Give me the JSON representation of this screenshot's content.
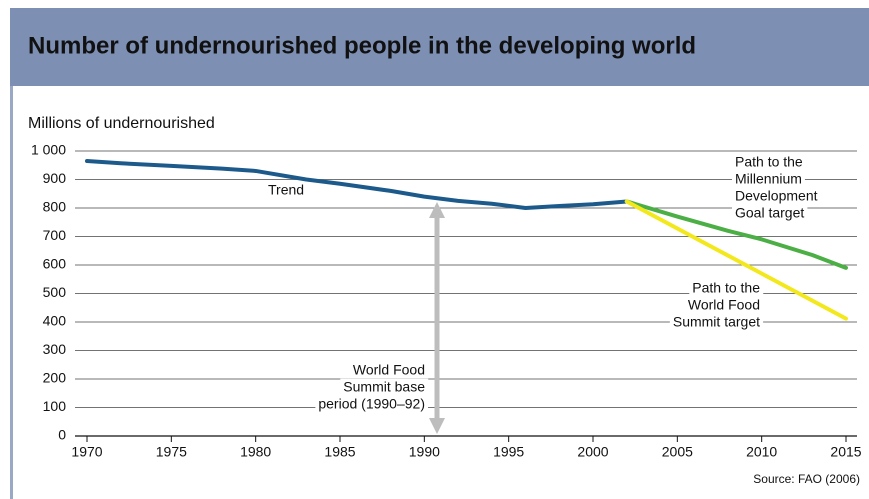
{
  "chart_data": {
    "type": "line",
    "title": "Number of undernourished people in the developing world",
    "ylabel": "Millions of undernourished",
    "source": "Source: FAO (2006)",
    "xlim": [
      1970,
      2015
    ],
    "xticks": [
      1970,
      1975,
      1980,
      1985,
      1990,
      1995,
      2000,
      2005,
      2010,
      2015
    ],
    "ylim": [
      0,
      1000
    ],
    "yticks": [
      0,
      100,
      200,
      300,
      400,
      500,
      600,
      700,
      800,
      900,
      {
        "value": 1000,
        "label": "1 000"
      }
    ],
    "grid": true,
    "series": [
      {
        "name": "Trend",
        "color": "#1d5a8c",
        "x": [
          1970,
          1972,
          1975,
          1978,
          1980,
          1983,
          1985,
          1988,
          1990,
          1992,
          1994,
          1996,
          1998,
          2000,
          2002
        ],
        "values": [
          965,
          957,
          948,
          938,
          930,
          900,
          885,
          860,
          840,
          825,
          815,
          800,
          807,
          813,
          823
        ]
      },
      {
        "name": "Path to the Millennium Development Goal target",
        "color": "#4caf45",
        "x": [
          2002,
          2005,
          2008,
          2010,
          2013,
          2015
        ],
        "values": [
          823,
          770,
          720,
          690,
          635,
          590
        ]
      },
      {
        "name": "Path to the World Food Summit target",
        "color": "#f2e81c",
        "x": [
          2002,
          2015
        ],
        "values": [
          823,
          412
        ]
      }
    ],
    "annotations": [
      {
        "lines": [
          "Trend"
        ]
      },
      {
        "lines": [
          "Path to the",
          "Millennium",
          "Development",
          "Goal target"
        ]
      },
      {
        "lines": [
          "Path to the",
          "World Food",
          "Summit target"
        ]
      },
      {
        "lines": [
          "World Food",
          "Summit base",
          "period (1990–92)"
        ]
      }
    ]
  }
}
